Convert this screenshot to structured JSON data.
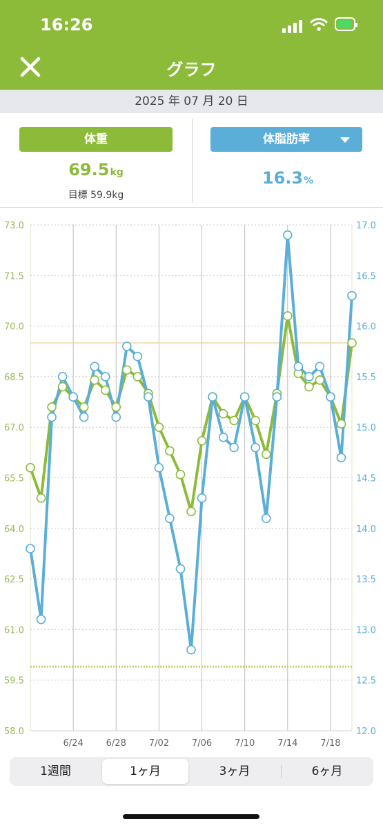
{
  "status_bar": {
    "time": "16:26"
  },
  "header": {
    "title": "グラフ",
    "close_icon": "close-icon"
  },
  "date": "2025 年 07 月 20 日",
  "weight_panel": {
    "label": "体重",
    "value": "69.5",
    "unit": "kg",
    "goal": "目標 59.9kg"
  },
  "fat_panel": {
    "label": "体脂肪率",
    "value": "16.3",
    "unit": "%",
    "dropdown_icon": "chevron-down-icon"
  },
  "colors": {
    "green": "#8cbb3a",
    "blue": "#5aaed8",
    "goal_line": "#b7d46b",
    "ref_line": "#f0d9a0"
  },
  "range_tabs": [
    "1週間",
    "1ヶ月",
    "3ヶ月",
    "6ヶ月"
  ],
  "range_selected": "1ヶ月",
  "chart_data": {
    "type": "line",
    "x": [
      "6/20",
      "6/21",
      "6/22",
      "6/23",
      "6/24",
      "6/25",
      "6/26",
      "6/27",
      "6/28",
      "6/29",
      "6/30",
      "7/01",
      "7/02",
      "7/03",
      "7/04",
      "7/05",
      "7/06",
      "7/07",
      "7/08",
      "7/09",
      "7/10",
      "7/11",
      "7/12",
      "7/13",
      "7/14",
      "7/15",
      "7/16",
      "7/17",
      "7/18",
      "7/19",
      "7/20"
    ],
    "x_tick_labels": [
      "6/24",
      "6/28",
      "7/02",
      "7/06",
      "7/10",
      "7/14",
      "7/18"
    ],
    "left_axis": {
      "ticks": [
        "73.0",
        "71.5",
        "70.0",
        "68.5",
        "67.0",
        "65.5",
        "64.0",
        "62.5",
        "61.0",
        "59.5",
        "58.0"
      ],
      "ylim": [
        58.0,
        73.0
      ]
    },
    "right_axis": {
      "ticks": [
        "17.0",
        "16.5",
        "16.0",
        "15.5",
        "15.0",
        "14.5",
        "14.0",
        "13.5",
        "13.0",
        "12.5",
        "12.0"
      ],
      "ylim": [
        12.0,
        17.0
      ]
    },
    "goal_weight": 59.9,
    "current_weight_line": 69.5,
    "series": [
      {
        "axis": "left",
        "color": "#8cbb3a",
        "values": [
          65.8,
          64.9,
          67.6,
          68.2,
          67.9,
          67.6,
          68.4,
          68.1,
          67.6,
          68.7,
          68.5,
          68.0,
          67.0,
          66.3,
          65.6,
          64.5,
          66.6,
          67.9,
          67.4,
          67.2,
          67.9,
          67.2,
          66.2,
          68.0,
          70.3,
          68.6,
          68.2,
          68.4,
          67.9,
          67.1,
          69.5
        ]
      },
      {
        "axis": "right",
        "color": "#5aaed8",
        "values": [
          13.8,
          13.1,
          15.1,
          15.5,
          15.3,
          15.1,
          15.6,
          15.5,
          15.1,
          15.8,
          15.7,
          15.3,
          14.6,
          14.1,
          13.6,
          12.8,
          14.3,
          15.3,
          14.9,
          14.8,
          15.3,
          14.8,
          14.1,
          15.3,
          16.9,
          15.6,
          15.5,
          15.6,
          15.3,
          14.7,
          16.3
        ]
      }
    ]
  }
}
